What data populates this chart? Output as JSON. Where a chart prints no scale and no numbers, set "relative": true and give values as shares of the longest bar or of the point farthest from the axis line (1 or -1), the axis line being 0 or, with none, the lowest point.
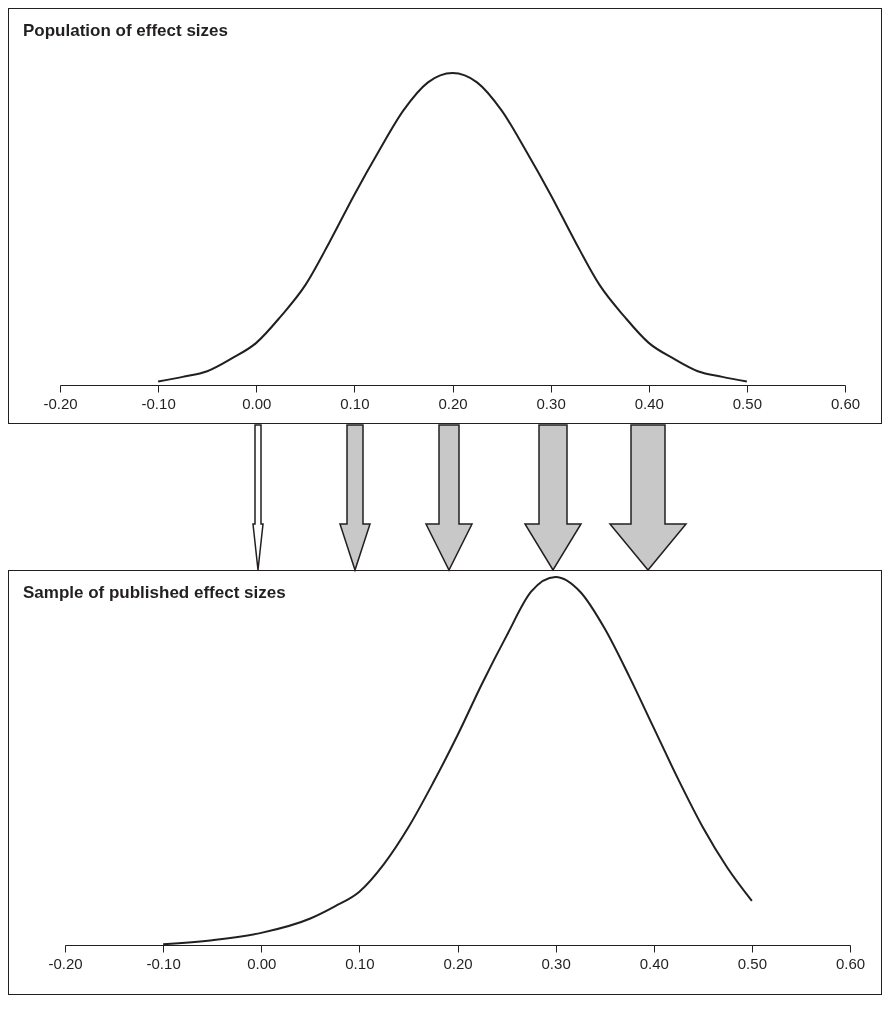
{
  "chart_data": [
    {
      "type": "line",
      "title": "Population of effect sizes",
      "relative": true,
      "xlim": [
        -0.2,
        0.6
      ],
      "xticks": [
        {
          "value": -0.2,
          "label": "-0.20"
        },
        {
          "value": -0.1,
          "label": "-0.10"
        },
        {
          "value": 0,
          "label": "0.00"
        },
        {
          "value": 0.1,
          "label": "0.10"
        },
        {
          "value": 0.2,
          "label": "0.20"
        },
        {
          "value": 0.3,
          "label": "0.30"
        },
        {
          "value": 0.4,
          "label": "0.40"
        },
        {
          "value": 0.5,
          "label": "0.50"
        },
        {
          "value": 0.6,
          "label": "0.60"
        }
      ],
      "series": [
        {
          "color": "#231f20",
          "x": [
            -0.1,
            -0.075,
            -0.05,
            -0.025,
            0,
            0.025,
            0.05,
            0.075,
            0.1,
            0.125,
            0.15,
            0.175,
            0.2,
            0.225,
            0.25,
            0.275,
            0.3,
            0.325,
            0.35,
            0.375,
            0.4,
            0.425,
            0.45,
            0.475,
            0.5
          ],
          "values": [
            0.011,
            0.026,
            0.044,
            0.085,
            0.135,
            0.22,
            0.32,
            0.46,
            0.61,
            0.75,
            0.88,
            0.97,
            1,
            0.97,
            0.88,
            0.75,
            0.61,
            0.46,
            0.32,
            0.22,
            0.135,
            0.085,
            0.044,
            0.026,
            0.011
          ]
        }
      ]
    },
    {
      "type": "line",
      "title": "Sample of published effect sizes",
      "relative": true,
      "xlim": [
        -0.2,
        0.6
      ],
      "xticks": [
        {
          "value": -0.2,
          "label": "-0.20"
        },
        {
          "value": -0.1,
          "label": "-0.10"
        },
        {
          "value": 0,
          "label": "0.00"
        },
        {
          "value": 0.1,
          "label": "0.10"
        },
        {
          "value": 0.2,
          "label": "0.20"
        },
        {
          "value": 0.3,
          "label": "0.30"
        },
        {
          "value": 0.4,
          "label": "0.40"
        },
        {
          "value": 0.5,
          "label": "0.50"
        },
        {
          "value": 0.6,
          "label": "0.60"
        }
      ],
      "series": [
        {
          "color": "#231f20",
          "x": [
            -0.1,
            -0.05,
            0,
            0.05,
            0.075,
            0.1,
            0.125,
            0.15,
            0.175,
            0.2,
            0.225,
            0.25,
            0.275,
            0.3,
            0.325,
            0.35,
            0.375,
            0.4,
            0.425,
            0.45,
            0.475,
            0.5
          ],
          "values": [
            0.002,
            0.013,
            0.033,
            0.072,
            0.105,
            0.145,
            0.22,
            0.32,
            0.44,
            0.57,
            0.71,
            0.84,
            0.96,
            1,
            0.96,
            0.86,
            0.73,
            0.59,
            0.45,
            0.32,
            0.21,
            0.12
          ]
        }
      ]
    }
  ]
}
